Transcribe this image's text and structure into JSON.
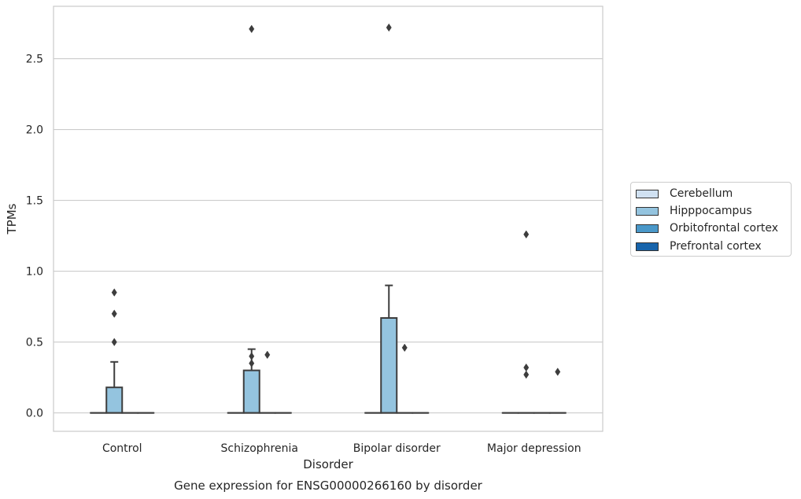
{
  "chart_data": {
    "type": "box",
    "title": "Gene expression for ENSG00000266160 by disorder",
    "xlabel": "Disorder",
    "ylabel": "TPMs",
    "categories": [
      "Control",
      "Schizophrenia",
      "Bipolar disorder",
      "Major depression"
    ],
    "ylim": [
      -0.13,
      2.87
    ],
    "yticks": [
      0.0,
      0.5,
      1.0,
      1.5,
      2.0,
      2.5
    ],
    "ytick_labels": [
      "0.0",
      "0.5",
      "1.0",
      "1.5",
      "2.0",
      "2.5"
    ],
    "grid": "horizontal",
    "legend_position": "right",
    "series": [
      {
        "name": "Cerebellum",
        "color": "#d0e1f2",
        "boxes": [
          {
            "q1": 0,
            "median": 0,
            "q3": 0,
            "whisker_low": 0,
            "whisker_high": 0,
            "outliers": []
          },
          {
            "q1": 0,
            "median": 0,
            "q3": 0,
            "whisker_low": 0,
            "whisker_high": 0,
            "outliers": []
          },
          {
            "q1": 0,
            "median": 0,
            "q3": 0,
            "whisker_low": 0,
            "whisker_high": 0,
            "outliers": []
          },
          {
            "q1": 0,
            "median": 0,
            "q3": 0,
            "whisker_low": 0,
            "whisker_high": 0,
            "outliers": []
          }
        ]
      },
      {
        "name": "Hipppocampus",
        "color": "#94c4df",
        "boxes": [
          {
            "q1": 0,
            "median": 0,
            "q3": 0.18,
            "whisker_low": 0,
            "whisker_high": 0.36,
            "outliers": [
              0.5,
              0.7,
              0.85
            ]
          },
          {
            "q1": 0,
            "median": 0,
            "q3": 0.3,
            "whisker_low": 0,
            "whisker_high": 0.45,
            "outliers": [
              0.35,
              0.4,
              2.71
            ]
          },
          {
            "q1": 0,
            "median": 0,
            "q3": 0.67,
            "whisker_low": 0,
            "whisker_high": 0.9,
            "outliers": [
              2.72
            ]
          },
          {
            "q1": 0,
            "median": 0,
            "q3": 0,
            "whisker_low": 0,
            "whisker_high": 0,
            "outliers": [
              0.27,
              0.32,
              1.26
            ]
          }
        ]
      },
      {
        "name": "Orbitofrontal cortex",
        "color": "#4a98c9",
        "boxes": [
          {
            "q1": 0,
            "median": 0,
            "q3": 0,
            "whisker_low": 0,
            "whisker_high": 0,
            "outliers": []
          },
          {
            "q1": 0,
            "median": 0,
            "q3": 0,
            "whisker_low": 0,
            "whisker_high": 0,
            "outliers": [
              0.41
            ]
          },
          {
            "q1": 0,
            "median": 0,
            "q3": 0,
            "whisker_low": 0,
            "whisker_high": 0,
            "outliers": [
              0.46
            ]
          },
          {
            "q1": 0,
            "median": 0,
            "q3": 0,
            "whisker_low": 0,
            "whisker_high": 0,
            "outliers": []
          }
        ]
      },
      {
        "name": "Prefrontal cortex",
        "color": "#1764ab",
        "boxes": [
          {
            "q1": 0,
            "median": 0,
            "q3": 0,
            "whisker_low": 0,
            "whisker_high": 0,
            "outliers": []
          },
          {
            "q1": 0,
            "median": 0,
            "q3": 0,
            "whisker_low": 0,
            "whisker_high": 0,
            "outliers": []
          },
          {
            "q1": 0,
            "median": 0,
            "q3": 0,
            "whisker_low": 0,
            "whisker_high": 0,
            "outliers": []
          },
          {
            "q1": 0,
            "median": 0,
            "q3": 0,
            "whisker_low": 0,
            "whisker_high": 0,
            "outliers": [
              0.29
            ]
          }
        ]
      }
    ]
  }
}
